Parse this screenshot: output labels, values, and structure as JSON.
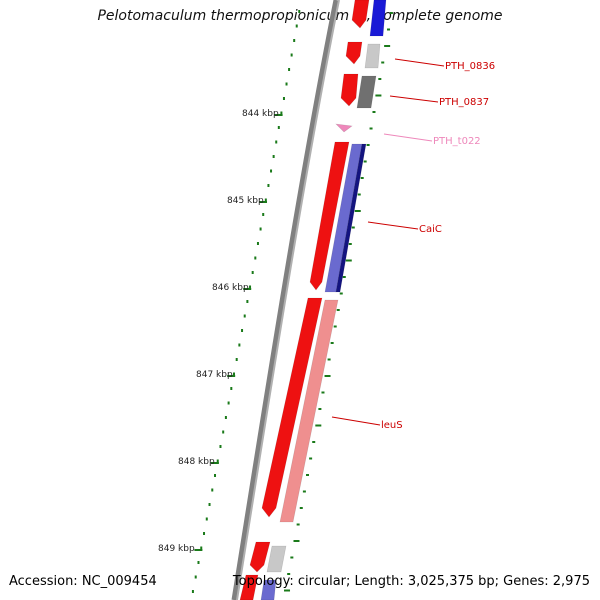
{
  "title": "Pelotomaculum thermopropionicum SI, complete genome",
  "footer": {
    "accession": "Accession: NC_009454",
    "summary": "Topology: circular; Length: 3,025,375 bp; Genes: 2,975"
  },
  "colors": {
    "backbone": "#808080",
    "tick": "#1a7a1a",
    "gene_red": "#ee1111",
    "gene_pink": "#ef8f8f",
    "gene_blue": "#1a1ad6",
    "gene_navy": "#141480",
    "gene_light_gray": "#c8c8c8",
    "gene_dark_gray": "#707070",
    "label_red": "#cc0000",
    "label_pink": "#ee88bb"
  },
  "scale": {
    "unit": "kbp",
    "labels": [
      "844 kbp",
      "845 kbp",
      "846 kbp",
      "847 kbp",
      "848 kbp",
      "849 kbp"
    ]
  },
  "genes": [
    {
      "name": "PTH_0836",
      "color": "label_red"
    },
    {
      "name": "PTH_0837",
      "color": "label_red"
    },
    {
      "name": "PTH_t022",
      "color": "label_pink"
    },
    {
      "name": "CaiC",
      "color": "label_red"
    },
    {
      "name": "leuS",
      "color": "label_red"
    }
  ]
}
